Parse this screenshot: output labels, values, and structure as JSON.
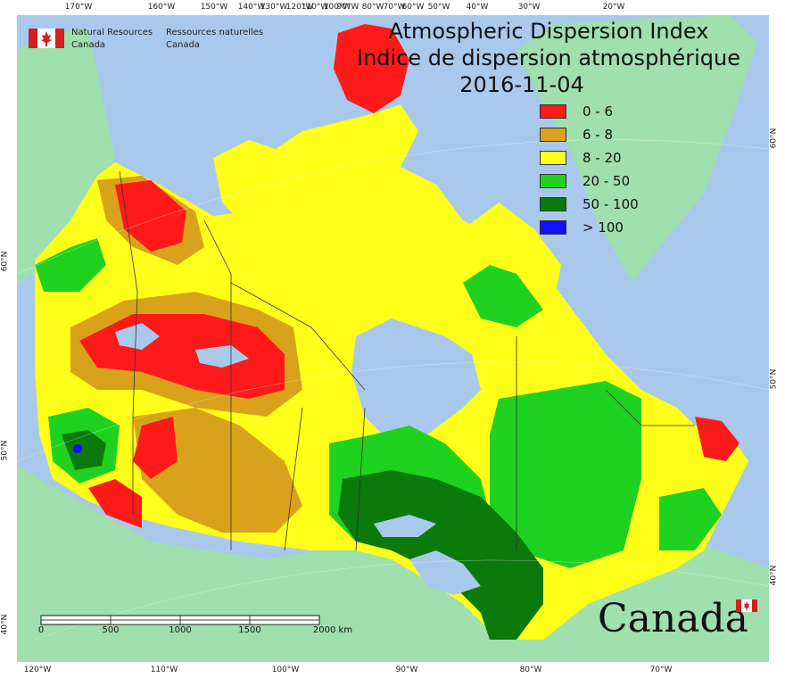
{
  "title": {
    "en": "Atmospheric Dispersion Index",
    "fr": "Indice de dispersion atmosphérique",
    "date": "2016-11-04"
  },
  "agency": {
    "en_line1": "Natural Resources",
    "en_line2": "Canada",
    "fr_line1": "Ressources naturelles",
    "fr_line2": "Canada"
  },
  "wordmark": "Canada",
  "legend": [
    {
      "label": "0 - 6",
      "color": "#ff1a1a"
    },
    {
      "label": "6 - 8",
      "color": "#d9a21b"
    },
    {
      "label": "8 - 20",
      "color": "#ffff1a"
    },
    {
      "label": "20 - 50",
      "color": "#1fd21f"
    },
    {
      "label": "50 - 100",
      "color": "#0b7a0b"
    },
    {
      "label": "> 100",
      "color": "#1010ff"
    }
  ],
  "colors": {
    "ocean": "#a9c9ec",
    "land_outside": "#9fe0ae",
    "border": "#333333"
  },
  "scale": {
    "labels": [
      "0",
      "500",
      "1000",
      "1500",
      "2000 km"
    ]
  },
  "graticule": {
    "top": [
      "170°W",
      "160°W",
      "150°W",
      "140°W",
      "120°W",
      "100°W",
      "90°W",
      "80°W",
      "60°W",
      "50°W",
      "40°W",
      "30°W",
      "20°W"
    ],
    "bottom": [
      "120°W",
      "110°W",
      "100°W",
      "90°W",
      "80°W",
      "70°W"
    ],
    "left": [
      "60°N",
      "50°N",
      "40°N"
    ],
    "right": [
      "60°N",
      "50°N",
      "40°N"
    ],
    "extra_top": [
      "130°W",
      "110°W",
      "70°W"
    ]
  }
}
